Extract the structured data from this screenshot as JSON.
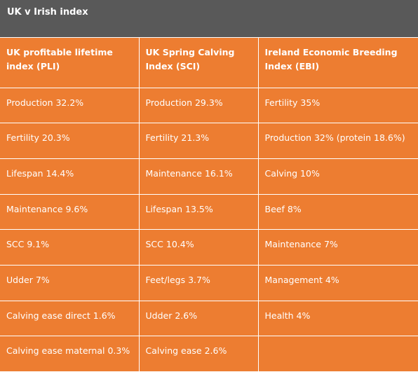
{
  "title": "UK v Irish index",
  "columns": [
    "UK profitable lifetime index (PLI)",
    "UK Spring Calving Index (SCI)",
    "Ireland Economic Breeding Index (EBI)"
  ],
  "rows": [
    [
      "Production 32.2%",
      "Production 29.3%",
      "Fertility 35%"
    ],
    [
      "Fertility 20.3%",
      "Fertility 21.3%",
      "Production 32% (protein 18.6%)"
    ],
    [
      "Lifespan 14.4%",
      "Maintenance 16.1%",
      "Calving 10%"
    ],
    [
      "Maintenance 9.6%",
      "Lifespan 13.5%",
      "Beef 8%"
    ],
    [
      "SCC 9.1%",
      "SCC 10.4%",
      "Maintenance 7%"
    ],
    [
      "Udder 7%",
      "Feet/legs 3.7%",
      "Management 4%"
    ],
    [
      "Calving ease direct 1.6%",
      "Udder 2.6%",
      "Health 4%"
    ],
    [
      "Calving ease maternal 0.3%",
      "Calving ease 2.6%",
      ""
    ]
  ],
  "colors": {
    "title_bar": "#595959",
    "table_bg": "#ED7D31",
    "text": "#FFFFFF",
    "grid_lines": "#FFFFFF"
  }
}
